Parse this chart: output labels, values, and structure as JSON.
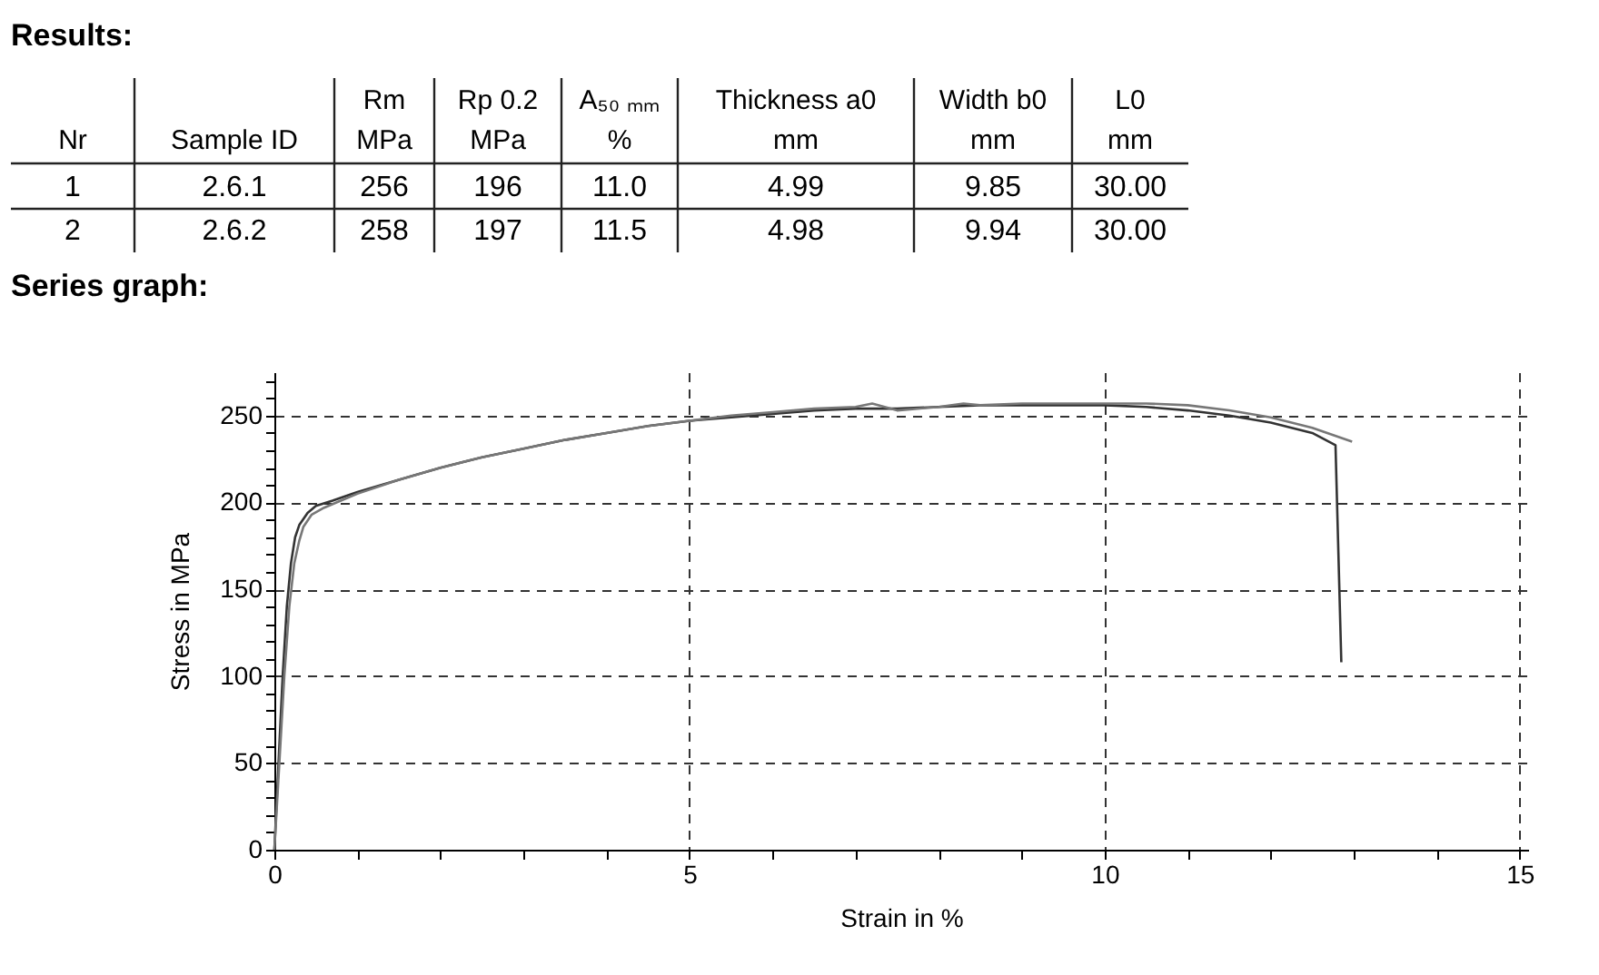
{
  "chart_data": [
    {
      "type": "other",
      "title": "Results:",
      "categories": [
        "Nr",
        "Sample ID",
        "Rm\nMPa",
        "Rp 0.2\nMPa",
        "A₅₀ ₘₘ\n%",
        "Thickness a0\nmm",
        "Width b0\nmm",
        "L0\nmm"
      ],
      "annotations": [
        "1",
        "2.6.1",
        "256",
        "196",
        "11.0",
        "4.99",
        "9.85",
        "30.00",
        "2",
        "2.6.2",
        "258",
        "197",
        "11.5",
        "4.98",
        "9.94",
        "30.00"
      ]
    },
    {
      "type": "line",
      "title": "Series graph:",
      "xlabel": "Strain in %",
      "ylabel": "Stress in MPa",
      "xlim": [
        0,
        15.1
      ],
      "ylim": [
        0,
        275
      ],
      "xticks": [
        0,
        {
          "value": 1,
          "label": null
        },
        {
          "value": 2,
          "label": null
        },
        {
          "value": 3,
          "label": null
        },
        {
          "value": 4,
          "label": null
        },
        5,
        {
          "value": 6,
          "label": null
        },
        {
          "value": 7,
          "label": null
        },
        {
          "value": 8,
          "label": null
        },
        {
          "value": 9,
          "label": null
        },
        10,
        {
          "value": 11,
          "label": null
        },
        {
          "value": 12,
          "label": null
        },
        {
          "value": 13,
          "label": null
        },
        {
          "value": 14,
          "label": null
        },
        15
      ],
      "yticks": [
        0,
        {
          "value": 10,
          "label": null
        },
        {
          "value": 20,
          "label": null
        },
        {
          "value": 30,
          "label": null
        },
        {
          "value": 40,
          "label": null
        },
        50,
        {
          "value": 60,
          "label": null
        },
        {
          "value": 70,
          "label": null
        },
        {
          "value": 80,
          "label": null
        },
        {
          "value": 90,
          "label": null
        },
        100,
        {
          "value": 110,
          "label": null
        },
        {
          "value": 120,
          "label": null
        },
        {
          "value": 130,
          "label": null
        },
        {
          "value": 140,
          "label": null
        },
        150,
        {
          "value": 160,
          "label": null
        },
        {
          "value": 170,
          "label": null
        },
        {
          "value": 180,
          "label": null
        },
        {
          "value": 190,
          "label": null
        },
        200,
        {
          "value": 210,
          "label": null
        },
        {
          "value": 220,
          "label": null
        },
        {
          "value": 230,
          "label": null
        },
        {
          "value": 240,
          "label": null
        },
        250,
        {
          "value": 260,
          "label": null
        },
        {
          "value": 270,
          "label": null
        }
      ],
      "grid": true,
      "marker": "none",
      "line_style": "solid",
      "series": [
        {
          "color": "#333333",
          "x": [
            0,
            0.05,
            0.1,
            0.15,
            0.2,
            0.25,
            0.3,
            0.4,
            0.5,
            0.7,
            1,
            1.5,
            2,
            2.5,
            3,
            3.5,
            4,
            4.5,
            5,
            5.5,
            6,
            6.5,
            7,
            7.5,
            8,
            8.5,
            9,
            9.5,
            10,
            10.5,
            11,
            11.5,
            12,
            12.5,
            12.78,
            12.85
          ],
          "values": [
            0,
            50,
            100,
            140,
            165,
            180,
            187,
            194,
            198,
            201,
            206,
            213,
            220,
            226,
            231,
            236,
            240,
            244,
            247,
            249,
            251,
            253,
            254,
            254,
            255,
            256,
            256,
            256,
            256,
            255,
            253,
            250,
            246,
            240,
            233,
            108
          ]
        },
        {
          "color": "#777777",
          "x": [
            0,
            0.06,
            0.12,
            0.18,
            0.24,
            0.3,
            0.35,
            0.45,
            0.6,
            0.8,
            1,
            1.5,
            2,
            2.5,
            3,
            3.5,
            4,
            4.5,
            5,
            5.5,
            6,
            6.5,
            7,
            7.2,
            7.5,
            8,
            8.3,
            8.5,
            9,
            9.5,
            10,
            10.5,
            11,
            11.5,
            12,
            12.5,
            12.98
          ],
          "values": [
            0,
            50,
            100,
            140,
            165,
            178,
            186,
            193,
            197,
            201,
            205,
            213,
            220,
            226,
            231,
            236,
            240,
            244,
            247,
            250,
            252,
            254,
            255,
            257,
            253,
            255,
            257,
            256,
            257,
            257,
            257,
            257,
            256,
            253,
            249,
            243,
            235
          ]
        }
      ]
    }
  ]
}
